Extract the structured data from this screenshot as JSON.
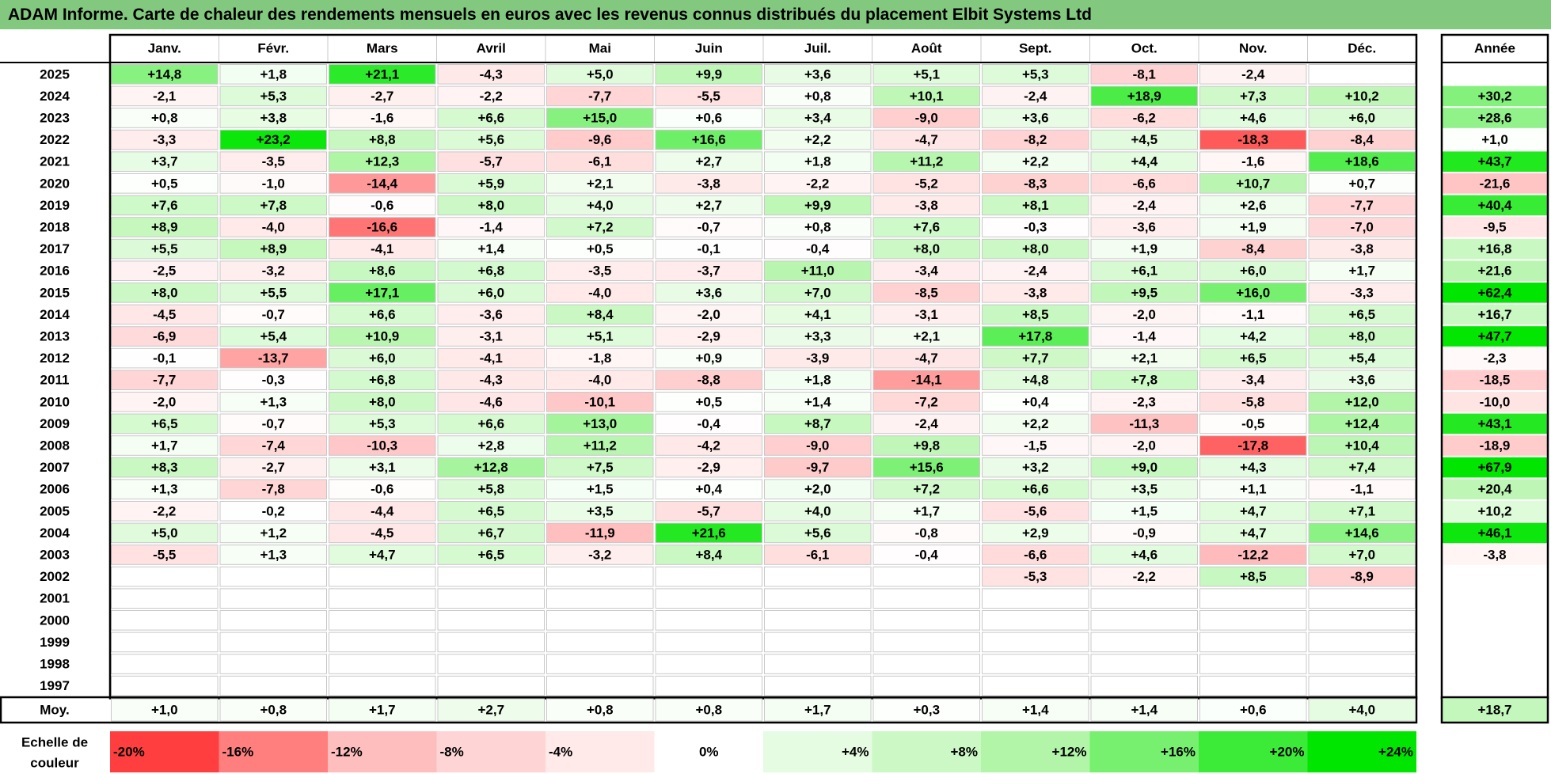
{
  "title": "ADAM Informe. Carte de chaleur des rendements mensuels en euros avec les revenus connus distribués du placement Elbit Systems Ltd",
  "chart_data": {
    "type": "heatmap",
    "title": "ADAM Informe. Carte de chaleur des rendements mensuels en euros avec les revenus connus distribués du placement Elbit Systems Ltd",
    "months": [
      "Janv.",
      "Févr.",
      "Mars",
      "Avril",
      "Mai",
      "Juin",
      "Juil.",
      "Août",
      "Sept.",
      "Oct.",
      "Nov.",
      "Déc."
    ],
    "year_header": "Année",
    "avg_label": "Moy.",
    "rows": [
      {
        "year": "2025",
        "values": [
          "+14,8",
          "+1,8",
          "+21,1",
          "-4,3",
          "+5,0",
          "+9,9",
          "+3,6",
          "+5,1",
          "+5,3",
          "-8,1",
          "-2,4",
          ""
        ],
        "total": ""
      },
      {
        "year": "2024",
        "values": [
          "-2,1",
          "+5,3",
          "-2,7",
          "-2,2",
          "-7,7",
          "-5,5",
          "+0,8",
          "+10,1",
          "-2,4",
          "+18,9",
          "+7,3",
          "+10,2"
        ],
        "total": "+30,2"
      },
      {
        "year": "2023",
        "values": [
          "+0,8",
          "+3,8",
          "-1,6",
          "+6,6",
          "+15,0",
          "+0,6",
          "+3,4",
          "-9,0",
          "+3,6",
          "-6,2",
          "+4,6",
          "+6,0"
        ],
        "total": "+28,6"
      },
      {
        "year": "2022",
        "values": [
          "-3,3",
          "+23,2",
          "+8,8",
          "+5,6",
          "-9,6",
          "+16,6",
          "+2,2",
          "-4,7",
          "-8,2",
          "+4,5",
          "-18,3",
          "-8,4"
        ],
        "total": "+1,0"
      },
      {
        "year": "2021",
        "values": [
          "+3,7",
          "-3,5",
          "+12,3",
          "-5,7",
          "-6,1",
          "+2,7",
          "+1,8",
          "+11,2",
          "+2,2",
          "+4,4",
          "-1,6",
          "+18,6"
        ],
        "total": "+43,7"
      },
      {
        "year": "2020",
        "values": [
          "+0,5",
          "-1,0",
          "-14,4",
          "+5,9",
          "+2,1",
          "-3,8",
          "-2,2",
          "-5,2",
          "-8,3",
          "-6,6",
          "+10,7",
          "+0,7"
        ],
        "total": "-21,6"
      },
      {
        "year": "2019",
        "values": [
          "+7,6",
          "+7,8",
          "-0,6",
          "+8,0",
          "+4,0",
          "+2,7",
          "+9,9",
          "-3,8",
          "+8,1",
          "-2,4",
          "+2,6",
          "-7,7"
        ],
        "total": "+40,4"
      },
      {
        "year": "2018",
        "values": [
          "+8,9",
          "-4,0",
          "-16,6",
          "-1,4",
          "+7,2",
          "-0,7",
          "+0,8",
          "+7,6",
          "-0,3",
          "-3,6",
          "+1,9",
          "-7,0"
        ],
        "total": "-9,5"
      },
      {
        "year": "2017",
        "values": [
          "+5,5",
          "+8,9",
          "-4,1",
          "+1,4",
          "+0,5",
          "-0,1",
          "-0,4",
          "+8,0",
          "+8,0",
          "+1,9",
          "-8,4",
          "-3,8"
        ],
        "total": "+16,8"
      },
      {
        "year": "2016",
        "values": [
          "-2,5",
          "-3,2",
          "+8,6",
          "+6,8",
          "-3,5",
          "-3,7",
          "+11,0",
          "-3,4",
          "-2,4",
          "+6,1",
          "+6,0",
          "+1,7"
        ],
        "total": "+21,6"
      },
      {
        "year": "2015",
        "values": [
          "+8,0",
          "+5,5",
          "+17,1",
          "+6,0",
          "-4,0",
          "+3,6",
          "+7,0",
          "-8,5",
          "-3,8",
          "+9,5",
          "+16,0",
          "-3,3"
        ],
        "total": "+62,4"
      },
      {
        "year": "2014",
        "values": [
          "-4,5",
          "-0,7",
          "+6,6",
          "-3,6",
          "+8,4",
          "-2,0",
          "+4,1",
          "-3,1",
          "+8,5",
          "-2,0",
          "-1,1",
          "+6,5"
        ],
        "total": "+16,7"
      },
      {
        "year": "2013",
        "values": [
          "-6,9",
          "+5,4",
          "+10,9",
          "-3,1",
          "+5,1",
          "-2,9",
          "+3,3",
          "+2,1",
          "+17,8",
          "-1,4",
          "+4,2",
          "+8,0"
        ],
        "total": "+47,7"
      },
      {
        "year": "2012",
        "values": [
          "-0,1",
          "-13,7",
          "+6,0",
          "-4,1",
          "-1,8",
          "+0,9",
          "-3,9",
          "-4,7",
          "+7,7",
          "+2,1",
          "+6,5",
          "+5,4"
        ],
        "total": "-2,3"
      },
      {
        "year": "2011",
        "values": [
          "-7,7",
          "-0,3",
          "+6,8",
          "-4,3",
          "-4,0",
          "-8,8",
          "+1,8",
          "-14,1",
          "+4,8",
          "+7,8",
          "-3,4",
          "+3,6"
        ],
        "total": "-18,5"
      },
      {
        "year": "2010",
        "values": [
          "-2,0",
          "+1,3",
          "+8,0",
          "-4,6",
          "-10,1",
          "+0,5",
          "+1,4",
          "-7,2",
          "+0,4",
          "-2,3",
          "-5,8",
          "+12,0"
        ],
        "total": "-10,0"
      },
      {
        "year": "2009",
        "values": [
          "+6,5",
          "-0,7",
          "+5,3",
          "+6,6",
          "+13,0",
          "-0,4",
          "+8,7",
          "-2,4",
          "+2,2",
          "-11,3",
          "-0,5",
          "+12,4"
        ],
        "total": "+43,1"
      },
      {
        "year": "2008",
        "values": [
          "+1,7",
          "-7,4",
          "-10,3",
          "+2,8",
          "+11,2",
          "-4,2",
          "-9,0",
          "+9,8",
          "-1,5",
          "-2,0",
          "-17,8",
          "+10,4"
        ],
        "total": "-18,9"
      },
      {
        "year": "2007",
        "values": [
          "+8,3",
          "-2,7",
          "+3,1",
          "+12,8",
          "+7,5",
          "-2,9",
          "-9,7",
          "+15,6",
          "+3,2",
          "+9,0",
          "+4,3",
          "+7,4"
        ],
        "total": "+67,9"
      },
      {
        "year": "2006",
        "values": [
          "+1,3",
          "-7,8",
          "-0,6",
          "+5,8",
          "+1,5",
          "+0,4",
          "+2,0",
          "+7,2",
          "+6,6",
          "+3,5",
          "+1,1",
          "-1,1"
        ],
        "total": "+20,4"
      },
      {
        "year": "2005",
        "values": [
          "-2,2",
          "-0,2",
          "-4,4",
          "+6,5",
          "+3,5",
          "-5,7",
          "+4,0",
          "+1,7",
          "-5,6",
          "+1,5",
          "+4,7",
          "+7,1"
        ],
        "total": "+10,2"
      },
      {
        "year": "2004",
        "values": [
          "+5,0",
          "+1,2",
          "-4,5",
          "+6,7",
          "-11,9",
          "+21,6",
          "+5,6",
          "-0,8",
          "+2,9",
          "-0,9",
          "+4,7",
          "+14,6"
        ],
        "total": "+46,1"
      },
      {
        "year": "2003",
        "values": [
          "-5,5",
          "+1,3",
          "+4,7",
          "+6,5",
          "-3,2",
          "+8,4",
          "-6,1",
          "-0,4",
          "-6,6",
          "+4,6",
          "-12,2",
          "+7,0"
        ],
        "total": "-3,8"
      },
      {
        "year": "2002",
        "values": [
          "",
          "",
          "",
          "",
          "",
          "",
          "",
          "",
          "-5,3",
          "-2,2",
          "+8,5",
          "-8,9"
        ],
        "total": ""
      },
      {
        "year": "2001",
        "values": [
          "",
          "",
          "",
          "",
          "",
          "",
          "",
          "",
          "",
          "",
          "",
          ""
        ],
        "total": ""
      },
      {
        "year": "2000",
        "values": [
          "",
          "",
          "",
          "",
          "",
          "",
          "",
          "",
          "",
          "",
          "",
          ""
        ],
        "total": ""
      },
      {
        "year": "1999",
        "values": [
          "",
          "",
          "",
          "",
          "",
          "",
          "",
          "",
          "",
          "",
          "",
          ""
        ],
        "total": ""
      },
      {
        "year": "1998",
        "values": [
          "",
          "",
          "",
          "",
          "",
          "",
          "",
          "",
          "",
          "",
          "",
          ""
        ],
        "total": ""
      },
      {
        "year": "1997",
        "values": [
          "",
          "",
          "",
          "",
          "",
          "",
          "",
          "",
          "",
          "",
          "",
          ""
        ],
        "total": ""
      }
    ],
    "averages": [
      "+1,0",
      "+0,8",
      "+1,7",
      "+2,7",
      "+0,8",
      "+0,8",
      "+1,7",
      "+0,3",
      "+1,4",
      "+1,4",
      "+0,6",
      "+4,0"
    ],
    "average_total": "+18,7",
    "scale": {
      "label_line1": "Echelle de",
      "label_line2": "couleur",
      "steps": [
        "-20%",
        "-16%",
        "-12%",
        "-8%",
        "-4%",
        "0%",
        "+4%",
        "+8%",
        "+12%",
        "+16%",
        "+20%",
        "+24%"
      ]
    },
    "colors": {
      "negative_max": "#ff0000",
      "neutral": "#ffffff",
      "positive_max": "#00e600",
      "title_bg": "#82c97f"
    }
  }
}
